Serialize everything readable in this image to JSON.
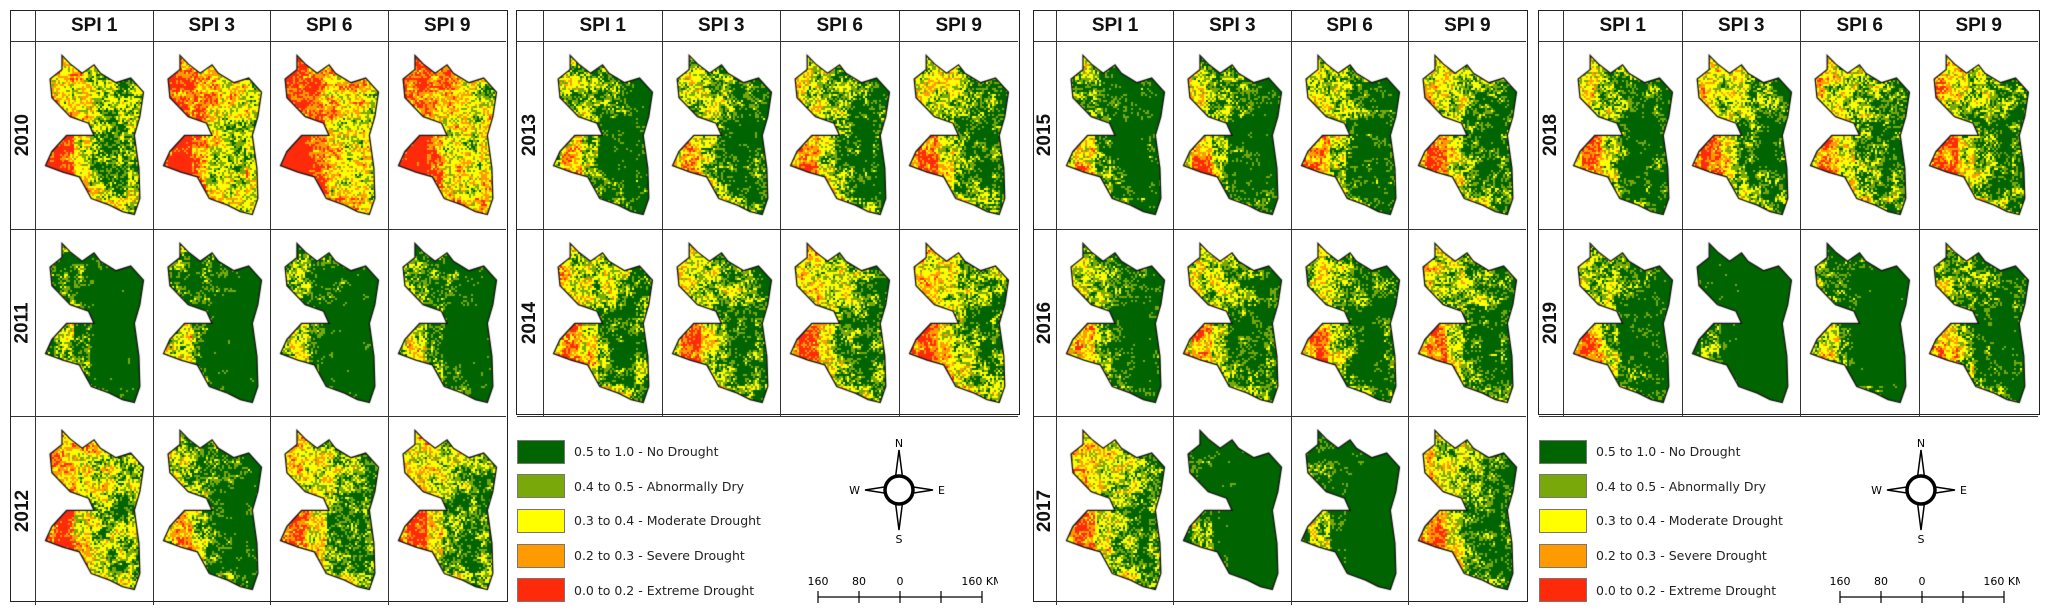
{
  "column_headers": [
    "SPI 1",
    "SPI 3",
    "SPI 6",
    "SPI 9"
  ],
  "panels": [
    {
      "years": [
        "2010",
        "2011",
        "2012"
      ]
    },
    {
      "years": [
        "2013",
        "2014"
      ]
    },
    {
      "years": [
        "2015",
        "2016",
        "2017"
      ]
    },
    {
      "years": [
        "2018",
        "2019"
      ]
    }
  ],
  "legend": {
    "items": [
      {
        "label": "0.5 to 1.0 - No Drought",
        "color": "#006400"
      },
      {
        "label": "0.4 to 0.5 - Abnormally Dry",
        "color": "#78a80a"
      },
      {
        "label": "0.3 to 0.4 - Moderate Drought",
        "color": "#ffff00"
      },
      {
        "label": "0.2 to 0.3 - Severe Drought",
        "color": "#ff9a00"
      },
      {
        "label": "0.0 to 0.2 - Extreme Drought",
        "color": "#ff2a0a"
      }
    ]
  },
  "compass": {
    "north": "N",
    "south": "S",
    "east": "E",
    "west": "W",
    "icon": "north-arrow-compass-icon"
  },
  "scale_bar": {
    "labels": [
      "160",
      "80",
      "0",
      "160 KM"
    ]
  }
}
